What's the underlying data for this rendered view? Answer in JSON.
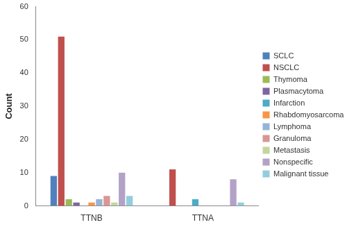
{
  "chart_data": {
    "type": "bar",
    "y_label": "Count",
    "categories": [
      "TTNB",
      "TTNA"
    ],
    "series": [
      {
        "name": "SCLC",
        "color": "#4f81bd",
        "values": [
          9,
          0
        ]
      },
      {
        "name": "NSCLC",
        "color": "#c0504d",
        "values": [
          51,
          11
        ]
      },
      {
        "name": "Thymoma",
        "color": "#9bbb59",
        "values": [
          2,
          0
        ]
      },
      {
        "name": "Plasmacytoma",
        "color": "#8064a2",
        "values": [
          1,
          0
        ]
      },
      {
        "name": "Infarction",
        "color": "#4bacc6",
        "values": [
          0,
          2
        ]
      },
      {
        "name": "Rhabdomyosarcoma",
        "color": "#f79646",
        "values": [
          1,
          0
        ]
      },
      {
        "name": "Lymphoma",
        "color": "#95b3d7",
        "values": [
          2,
          0
        ]
      },
      {
        "name": "Granuloma",
        "color": "#d99694",
        "values": [
          3,
          0
        ]
      },
      {
        "name": "Metastasis",
        "color": "#c3d69b",
        "values": [
          1,
          0
        ]
      },
      {
        "name": "Nonspecific",
        "color": "#b3a2c7",
        "values": [
          10,
          8
        ]
      },
      {
        "name": "Malignant tissue",
        "color": "#93cddd",
        "values": [
          3,
          1
        ]
      }
    ],
    "ylim": [
      0,
      60
    ],
    "yticks": [
      0,
      10,
      20,
      30,
      40,
      50,
      60
    ],
    "grid": false,
    "legend": "right"
  }
}
